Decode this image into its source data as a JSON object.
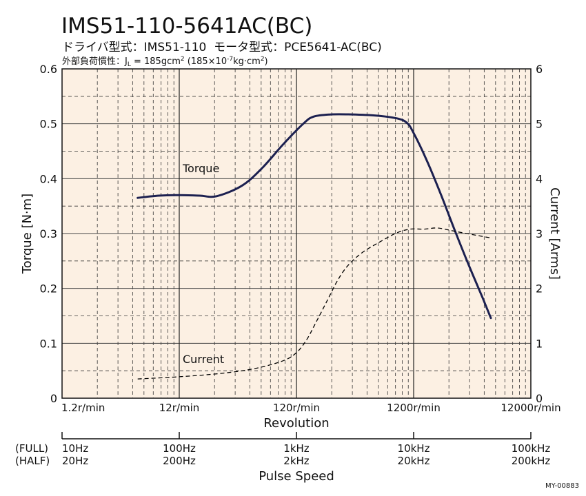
{
  "chart_data": {
    "type": "line",
    "title": "IMS51-110-5641AC(BC)",
    "subtitle": "ドライバ型式：IMS51-110  モータ型式：PCE5641-AC(BC)",
    "note": {
      "prefix": "外部負荷慣性：J",
      "sub": "L",
      "value": " = 185gcm",
      "value_sup": "2",
      "alt_open": " (185×10",
      "alt_sup": "-7",
      "alt_unit": "kg·cm",
      "alt_unit_sup": "2",
      "alt_close": ")"
    },
    "xlabel": "Revolution",
    "xscale": "log",
    "xlim": [
      1.2,
      12000
    ],
    "xticks": [
      {
        "value": 1.2,
        "label": "1.2r/min"
      },
      {
        "value": 12,
        "label": "12r/min"
      },
      {
        "value": 120,
        "label": "120r/min"
      },
      {
        "value": 1200,
        "label": "1200r/min"
      },
      {
        "value": 12000,
        "label": "12000r/min"
      }
    ],
    "ylabel": "Torque [N·m]",
    "ylim": [
      0,
      0.6
    ],
    "yticks": [
      {
        "value": 0,
        "label": "0"
      },
      {
        "value": 0.1,
        "label": "0.1"
      },
      {
        "value": 0.2,
        "label": "0.2"
      },
      {
        "value": 0.3,
        "label": "0.3"
      },
      {
        "value": 0.4,
        "label": "0.4"
      },
      {
        "value": 0.5,
        "label": "0.5"
      },
      {
        "value": 0.6,
        "label": "0.6"
      }
    ],
    "y2label": "Current [Arms]",
    "y2lim": [
      0,
      6
    ],
    "y2ticks": [
      {
        "value": 0,
        "label": "0"
      },
      {
        "value": 1,
        "label": "1"
      },
      {
        "value": 2,
        "label": "2"
      },
      {
        "value": 3,
        "label": "3"
      },
      {
        "value": 4,
        "label": "4"
      },
      {
        "value": 5,
        "label": "5"
      },
      {
        "value": 6,
        "label": "6"
      }
    ],
    "grid": true,
    "minor_grid": "dashed",
    "legend": "none",
    "colors": {
      "background": "#fcf0e3",
      "grid": "#333333",
      "axis": "#111111"
    },
    "series": [
      {
        "name": "Torque",
        "axis": "left",
        "line": "solid",
        "color": "#1c2050",
        "x": [
          5.3,
          8,
          12,
          18,
          25,
          41,
          61,
          92,
          137,
          168,
          236,
          355,
          570,
          855,
          1050,
          1200,
          1570,
          2060,
          2700,
          3550,
          4650,
          5470
        ],
        "y": [
          0.365,
          0.369,
          0.37,
          0.369,
          0.368,
          0.387,
          0.419,
          0.462,
          0.5,
          0.513,
          0.517,
          0.517,
          0.515,
          0.51,
          0.502,
          0.483,
          0.431,
          0.37,
          0.305,
          0.242,
          0.183,
          0.146
        ]
      },
      {
        "name": "Current",
        "axis": "right",
        "line": "dashed",
        "color": "#000000",
        "x": [
          5.3,
          12,
          27,
          53,
          92,
          120,
          147,
          180,
          221,
          270,
          331,
          435,
          610,
          855,
          1120,
          1470,
          1930,
          2700,
          4060,
          5470
        ],
        "y": [
          0.35,
          0.39,
          0.45,
          0.54,
          0.68,
          0.83,
          1.07,
          1.42,
          1.79,
          2.15,
          2.42,
          2.65,
          2.84,
          3.01,
          3.08,
          3.08,
          3.1,
          3.04,
          2.97,
          2.92
        ]
      }
    ],
    "pulse_axis": {
      "label": "Pulse Speed",
      "full_label": "(FULL)",
      "half_label": "(HALF)",
      "ticks": [
        {
          "value": 1.2,
          "full": "10Hz",
          "half": "20Hz"
        },
        {
          "value": 12,
          "full": "100Hz",
          "half": "200Hz"
        },
        {
          "value": 120,
          "full": "1kHz",
          "half": "2kHz"
        },
        {
          "value": 1200,
          "full": "10kHz",
          "half": "20kHz"
        },
        {
          "value": 12000,
          "full": "100kHz",
          "half": "200kHz"
        }
      ]
    }
  },
  "footer": {
    "code": "MY-00883"
  }
}
